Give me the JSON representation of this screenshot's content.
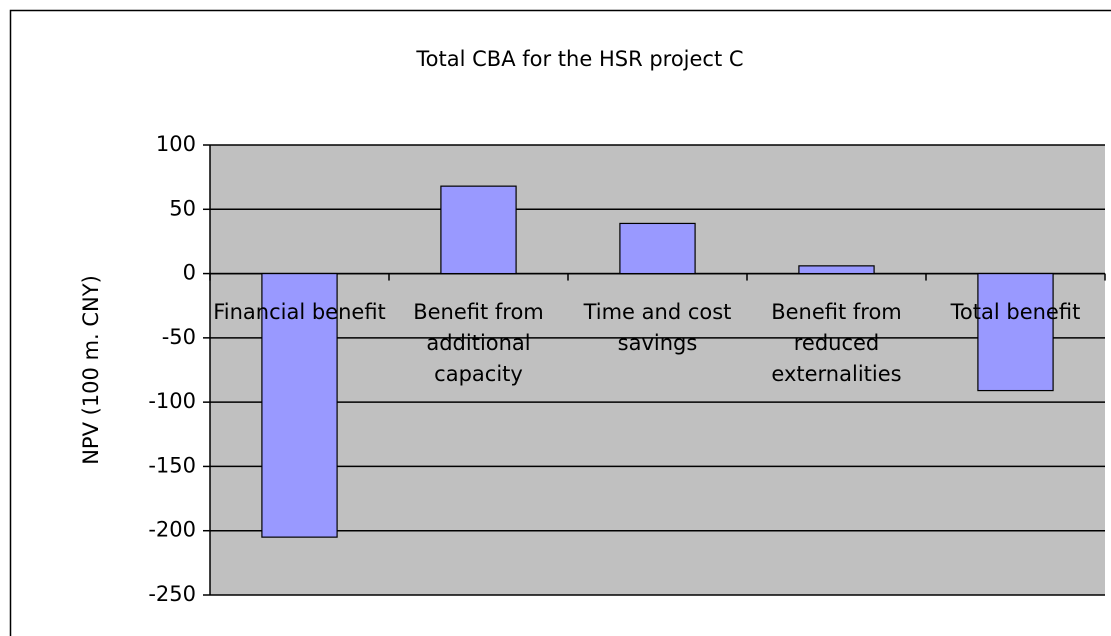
{
  "chart_data": {
    "type": "bar",
    "title": "Total CBA for the HSR project C",
    "y_label": "NPV (100 m. CNY)",
    "categories": [
      "Financial benefit",
      "Benefit from additional capacity",
      "Time and cost savings",
      "Benefit from reduced externalities",
      "Total benefit"
    ],
    "values": [
      -205,
      68,
      39,
      6,
      -91
    ],
    "color": "#9999ff",
    "ylim": [
      -250,
      100
    ],
    "yticks": [
      -250,
      -200,
      -150,
      -100,
      -50,
      0,
      50,
      100
    ],
    "grid": true
  }
}
